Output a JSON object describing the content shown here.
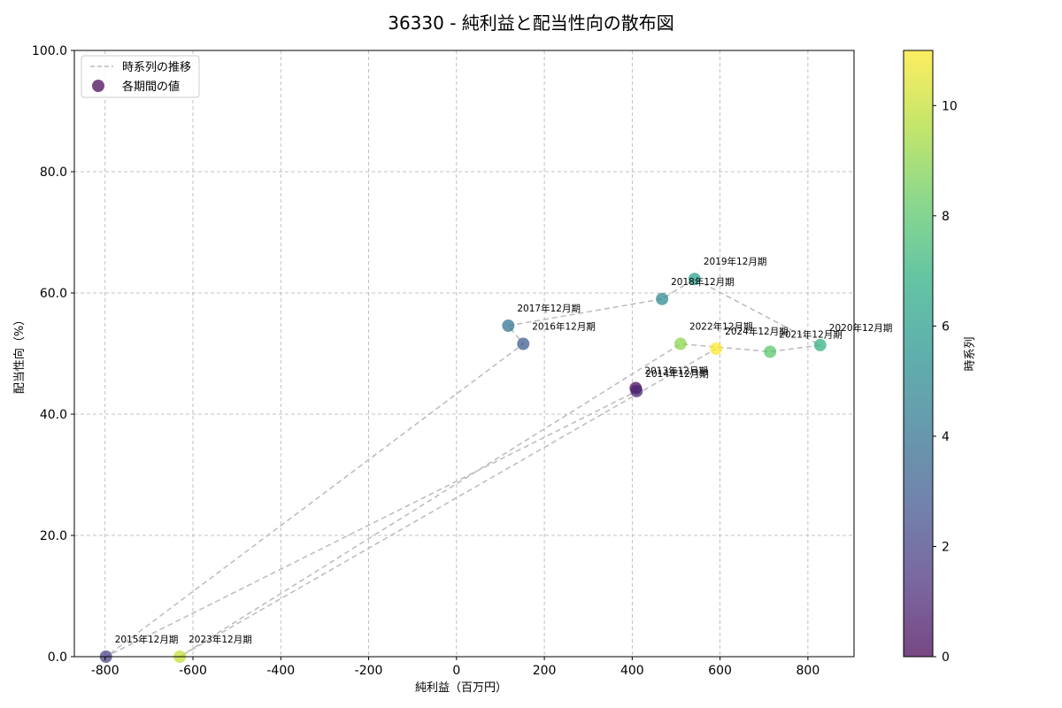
{
  "chart_data": {
    "type": "scatter",
    "title": "36330 - 純利益と配当性向の散布図",
    "xlabel": "純利益（百万円）",
    "ylabel": "配当性向（%）",
    "xlim": [
      -870,
      905
    ],
    "ylim": [
      0,
      100
    ],
    "x_ticks": [
      -800,
      -600,
      -400,
      -200,
      0,
      200,
      400,
      600,
      800
    ],
    "y_ticks": [
      0,
      20,
      40,
      60,
      80,
      100
    ],
    "x_tick_labels": [
      "-800",
      "-600",
      "-400",
      "-200",
      "0",
      "200",
      "400",
      "600",
      "800"
    ],
    "y_tick_labels": [
      "0.0",
      "20.0",
      "40.0",
      "60.0",
      "80.0",
      "100.0"
    ],
    "grid": true,
    "legend_position": "top-left",
    "legend": {
      "line_label": "時系列の推移",
      "marker_label": "各期間の値"
    },
    "colorbar": {
      "label": "時系列",
      "min": 0,
      "max": 11,
      "ticks": [
        0,
        2,
        4,
        6,
        8,
        10
      ],
      "colormap": "viridis"
    },
    "line_color": "#bbbbbb",
    "points": [
      {
        "label": "2013年12月期",
        "x": 408,
        "y": 44.3,
        "t": 0
      },
      {
        "label": "2014年12月期",
        "x": 410,
        "y": 43.8,
        "t": 1
      },
      {
        "label": "2015年12月期",
        "x": -798,
        "y": 0.0,
        "t": 2
      },
      {
        "label": "2016年12月期",
        "x": 152,
        "y": 51.6,
        "t": 3
      },
      {
        "label": "2017年12月期",
        "x": 118,
        "y": 54.6,
        "t": 4
      },
      {
        "label": "2018年12月期",
        "x": 468,
        "y": 59.0,
        "t": 5
      },
      {
        "label": "2019年12月期",
        "x": 542,
        "y": 62.3,
        "t": 6
      },
      {
        "label": "2020年12月期",
        "x": 828,
        "y": 51.4,
        "t": 7
      },
      {
        "label": "2021年12月期",
        "x": 714,
        "y": 50.3,
        "t": 8
      },
      {
        "label": "2022年12月期",
        "x": 510,
        "y": 51.6,
        "t": 9
      },
      {
        "label": "2023年12月期",
        "x": -630,
        "y": 0.0,
        "t": 10
      },
      {
        "label": "2024年12月期",
        "x": 591,
        "y": 50.8,
        "t": 11
      }
    ]
  }
}
